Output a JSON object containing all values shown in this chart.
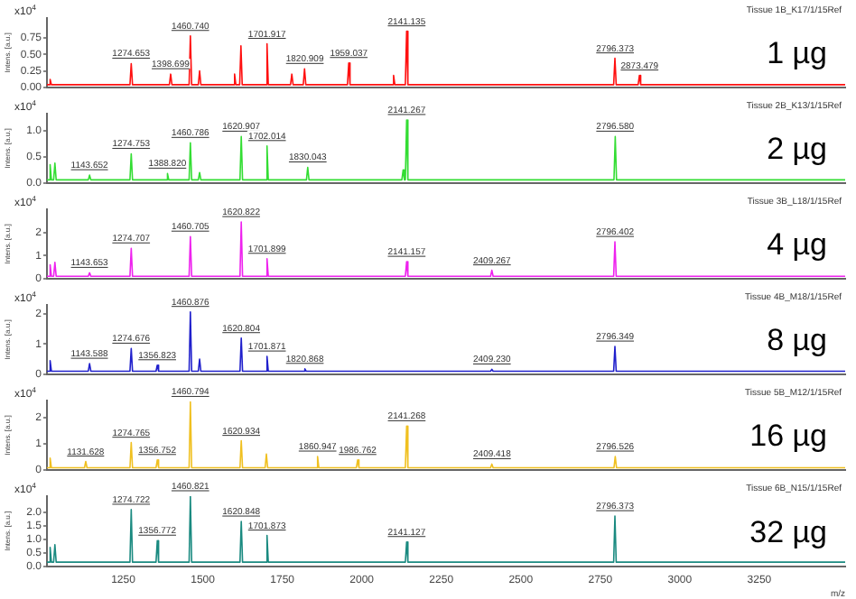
{
  "chart_data": [
    {
      "type": "line",
      "ylabel": "Intens. [a.u.]",
      "color": "#ff1010",
      "xlim": [
        1010,
        3520
      ],
      "xticks": [
        1250,
        1500,
        1750,
        2000,
        2250,
        2500,
        2750,
        3000,
        3250
      ],
      "ylim": [
        0,
        1.05
      ],
      "yticks": [
        {
          "value": 0,
          "label": "0.00"
        },
        0.25,
        {
          "value": 0.5,
          "label": "0.50"
        },
        0.75
      ],
      "tick_labels": "y",
      "grid": false,
      "legend": false,
      "marker": "none",
      "x": [
        1010,
        1016,
        1020,
        1024,
        1271,
        1275,
        1279,
        1395,
        1399,
        1403,
        1457,
        1461,
        1465,
        1486,
        1490,
        1494,
        1596,
        1600,
        1604,
        1616,
        1620,
        1624,
        1698,
        1702,
        1706,
        1776,
        1780,
        1784,
        1816,
        1820,
        1824,
        1955,
        1959,
        1963,
        2096,
        2100,
        2104,
        2137,
        2141,
        2145,
        2792,
        2796,
        2800,
        2869,
        2873,
        2877,
        3520
      ],
      "values": [
        0.04,
        0.04,
        0.12,
        0.04,
        0.04,
        0.36,
        0.04,
        0.04,
        0.2,
        0.04,
        0.04,
        0.78,
        0.04,
        0.04,
        0.25,
        0.04,
        0.04,
        0.2,
        0.04,
        0.04,
        0.63,
        0.04,
        0.04,
        0.66,
        0.04,
        0.04,
        0.2,
        0.04,
        0.04,
        0.28,
        0.04,
        0.04,
        0.37,
        0.04,
        0.04,
        0.18,
        0.04,
        0.04,
        0.85,
        0.04,
        0.04,
        0.44,
        0.04,
        0.04,
        0.18,
        0.04,
        0.04
      ],
      "annotations": [
        "x10$^{4}$",
        "Tissue 1B_K17/1/15Ref",
        "1 µg",
        {
          "text": "1274.653",
          "x": 1274.653,
          "y": 0.36
        },
        {
          "text": "1398.699",
          "x": 1398.699,
          "y": 0.2
        },
        {
          "text": "1460.740",
          "x": 1460.74,
          "y": 0.78
        },
        {
          "text": "1701.917",
          "x": 1701.917,
          "y": 0.66
        },
        {
          "text": "1820.909",
          "x": 1820.909,
          "y": 0.28
        },
        {
          "text": "1959.037",
          "x": 1959.037,
          "y": 0.37
        },
        {
          "text": "2141.135",
          "x": 2141.135,
          "y": 0.85
        },
        {
          "text": "2796.373",
          "x": 2796.373,
          "y": 0.44
        },
        {
          "text": "2873.479",
          "x": 2873.479,
          "y": 0.18
        }
      ]
    },
    {
      "type": "line",
      "ylabel": "Intens. [a.u.]",
      "color": "#33dd33",
      "xlim": [
        1010,
        3520
      ],
      "xticks": [
        1250,
        1500,
        1750,
        2000,
        2250,
        2500,
        2750,
        3000,
        3250
      ],
      "ylim": [
        0,
        1.33
      ],
      "yticks": [
        {
          "value": 0,
          "label": "0.0"
        },
        0.5,
        {
          "value": 1,
          "label": "1.0"
        }
      ],
      "tick_labels": "y",
      "grid": false,
      "legend": false,
      "marker": "none",
      "x": [
        1010,
        1016,
        1020,
        1024,
        1031,
        1035,
        1039,
        1140,
        1144,
        1148,
        1271,
        1275,
        1279,
        1385,
        1389,
        1393,
        1457,
        1461,
        1465,
        1486,
        1490,
        1494,
        1617,
        1621,
        1625,
        1698,
        1702,
        1706,
        1826,
        1830,
        1834,
        2126,
        2130,
        2134,
        2137,
        2141,
        2145,
        2793,
        2797,
        2801,
        3520
      ],
      "values": [
        0.06,
        0.06,
        0.35,
        0.06,
        0.06,
        0.38,
        0.06,
        0.06,
        0.15,
        0.06,
        0.06,
        0.56,
        0.06,
        0.06,
        0.18,
        0.06,
        0.06,
        0.77,
        0.06,
        0.06,
        0.2,
        0.06,
        0.06,
        0.89,
        0.06,
        0.06,
        0.71,
        0.06,
        0.06,
        0.3,
        0.06,
        0.06,
        0.25,
        0.06,
        0.06,
        1.21,
        0.06,
        0.06,
        0.89,
        0.06,
        0.06
      ],
      "annotations": [
        "x10$^{4}$",
        "Tissue 2B_K13/1/15Ref",
        "2 µg",
        {
          "text": "1143.652",
          "x": 1143.652,
          "y": 0.15
        },
        {
          "text": "1274.753",
          "x": 1274.753,
          "y": 0.56
        },
        {
          "text": "1388.820",
          "x": 1388.82,
          "y": 0.18
        },
        {
          "text": "1460.786",
          "x": 1460.786,
          "y": 0.77
        },
        {
          "text": "1620.907",
          "x": 1620.907,
          "y": 0.89
        },
        {
          "text": "1702.014",
          "x": 1702.014,
          "y": 0.71
        },
        {
          "text": "1830.043",
          "x": 1830.043,
          "y": 0.3
        },
        {
          "text": "2141.267",
          "x": 2141.267,
          "y": 1.21
        },
        {
          "text": "2796.580",
          "x": 2796.58,
          "y": 0.89
        }
      ]
    },
    {
      "type": "line",
      "ylabel": "Intens. [a.u.]",
      "color": "#ee22ee",
      "xlim": [
        1010,
        3520
      ],
      "xticks": [
        1250,
        1500,
        1750,
        2000,
        2250,
        2500,
        2750,
        3000,
        3250
      ],
      "ylim": [
        0,
        3
      ],
      "yticks": [
        0,
        1,
        2
      ],
      "tick_labels": "y",
      "grid": false,
      "legend": false,
      "marker": "none",
      "x": [
        1010,
        1016,
        1020,
        1024,
        1031,
        1035,
        1039,
        1140,
        1144,
        1148,
        1271,
        1275,
        1279,
        1457,
        1461,
        1465,
        1617,
        1621,
        1625,
        1698,
        1702,
        1706,
        2137,
        2141,
        2145,
        2405,
        2409,
        2413,
        2792,
        2796,
        2800,
        3520
      ],
      "values": [
        0.1,
        0.1,
        0.6,
        0.1,
        0.1,
        0.7,
        0.1,
        0.1,
        0.25,
        0.1,
        0.1,
        1.31,
        0.1,
        0.1,
        1.82,
        0.1,
        0.1,
        2.45,
        0.1,
        0.1,
        0.86,
        0.1,
        0.1,
        0.73,
        0.1,
        0.1,
        0.36,
        0.1,
        0.1,
        1.59,
        0.1,
        0.1
      ],
      "annotations": [
        "x10$^{4}$",
        "Tissue 3B_L18/1/15Ref",
        "4 µg",
        {
          "text": "1143.653",
          "x": 1143.653,
          "y": 0.25
        },
        {
          "text": "1274.707",
          "x": 1274.707,
          "y": 1.31
        },
        {
          "text": "1460.705",
          "x": 1460.705,
          "y": 1.82
        },
        {
          "text": "1620.822",
          "x": 1620.822,
          "y": 2.45
        },
        {
          "text": "1701.899",
          "x": 1701.899,
          "y": 0.86
        },
        {
          "text": "2141.157",
          "x": 2141.157,
          "y": 0.73
        },
        {
          "text": "2409.267",
          "x": 2409.267,
          "y": 0.36
        },
        {
          "text": "2796.402",
          "x": 2796.402,
          "y": 1.59
        }
      ]
    },
    {
      "type": "line",
      "ylabel": "Intens. [a.u.]",
      "color": "#2020cc",
      "xlim": [
        1010,
        3520
      ],
      "xticks": [
        1250,
        1500,
        1750,
        2000,
        2250,
        2500,
        2750,
        3000,
        3250
      ],
      "ylim": [
        0,
        2.3
      ],
      "yticks": [
        0,
        1,
        2
      ],
      "tick_labels": "y",
      "grid": false,
      "legend": false,
      "marker": "none",
      "x": [
        1010,
        1016,
        1020,
        1024,
        1140,
        1144,
        1148,
        1271,
        1275,
        1279,
        1353,
        1357,
        1361,
        1457,
        1461,
        1465,
        1486,
        1490,
        1494,
        1617,
        1621,
        1625,
        1698,
        1702,
        1706,
        1817,
        1821,
        1825,
        2405,
        2409,
        2413,
        2792,
        2796,
        2800,
        3520
      ],
      "values": [
        0.1,
        0.1,
        0.45,
        0.1,
        0.1,
        0.35,
        0.1,
        0.1,
        0.85,
        0.1,
        0.1,
        0.3,
        0.1,
        0.1,
        2.07,
        0.1,
        0.1,
        0.5,
        0.1,
        0.1,
        1.2,
        0.1,
        0.1,
        0.59,
        0.1,
        0.1,
        0.18,
        0.1,
        0.1,
        0.16,
        0.1,
        0.1,
        0.92,
        0.1,
        0.1
      ],
      "annotations": [
        "x10$^{4}$",
        "Tissue 4B_M18/1/15Ref",
        "8 µg",
        {
          "text": "1143.588",
          "x": 1143.588,
          "y": 0.35
        },
        {
          "text": "1274.676",
          "x": 1274.676,
          "y": 0.85
        },
        {
          "text": "1356.823",
          "x": 1356.823,
          "y": 0.3
        },
        {
          "text": "1460.876",
          "x": 1460.876,
          "y": 2.07
        },
        {
          "text": "1620.804",
          "x": 1620.804,
          "y": 1.2
        },
        {
          "text": "1701.871",
          "x": 1701.871,
          "y": 0.59
        },
        {
          "text": "1820.868",
          "x": 1820.868,
          "y": 0.18
        },
        {
          "text": "2409.230",
          "x": 2409.23,
          "y": 0.16
        },
        {
          "text": "2796.349",
          "x": 2796.349,
          "y": 0.92
        }
      ]
    },
    {
      "type": "line",
      "ylabel": "Intens. [a.u.]",
      "color": "#f0c020",
      "xlim": [
        1010,
        3520
      ],
      "xticks": [
        1250,
        1500,
        1750,
        2000,
        2250,
        2500,
        2750,
        3000,
        3250
      ],
      "ylim": [
        0,
        2.65
      ],
      "yticks": [
        0,
        1,
        2
      ],
      "tick_labels": "y",
      "grid": false,
      "legend": false,
      "marker": "none",
      "x": [
        1010,
        1016,
        1020,
        1024,
        1128,
        1132,
        1136,
        1271,
        1275,
        1279,
        1353,
        1357,
        1361,
        1457,
        1461,
        1465,
        1617,
        1621,
        1625,
        1696,
        1700,
        1704,
        1857,
        1861,
        1865,
        1983,
        1987,
        1991,
        2137,
        2141,
        2145,
        2405,
        2409,
        2413,
        2793,
        2797,
        2801,
        3520
      ],
      "values": [
        0.08,
        0.08,
        0.45,
        0.08,
        0.08,
        0.32,
        0.08,
        0.08,
        1.04,
        0.08,
        0.08,
        0.38,
        0.08,
        0.08,
        2.6,
        0.08,
        0.08,
        1.11,
        0.08,
        0.08,
        0.6,
        0.08,
        0.08,
        0.51,
        0.08,
        0.08,
        0.38,
        0.08,
        0.08,
        1.67,
        0.08,
        0.08,
        0.22,
        0.08,
        0.08,
        0.51,
        0.08,
        0.08
      ],
      "annotations": [
        "x10$^{4}$",
        "Tissue 5B_M12/1/15Ref",
        "16 µg",
        {
          "text": "1131.628",
          "x": 1131.628,
          "y": 0.32
        },
        {
          "text": "1274.765",
          "x": 1274.765,
          "y": 1.04
        },
        {
          "text": "1356.752",
          "x": 1356.752,
          "y": 0.38
        },
        {
          "text": "1460.794",
          "x": 1460.794,
          "y": 2.6
        },
        {
          "text": "1620.934",
          "x": 1620.934,
          "y": 1.11
        },
        {
          "text": "1860.947",
          "x": 1860.947,
          "y": 0.51
        },
        {
          "text": "1986.762",
          "x": 1986.762,
          "y": 0.38
        },
        {
          "text": "2141.268",
          "x": 2141.268,
          "y": 1.67
        },
        {
          "text": "2409.418",
          "x": 2409.418,
          "y": 0.22
        },
        {
          "text": "2796.526",
          "x": 2796.526,
          "y": 0.51
        }
      ]
    },
    {
      "type": "line",
      "ylabel": "Intens. [a.u.]",
      "xlabel": "m/z",
      "color": "#1a8a80",
      "xlim": [
        1010,
        3520
      ],
      "xticks": [
        1250,
        1500,
        1750,
        2000,
        2250,
        2500,
        2750,
        3000,
        3250
      ],
      "ylim": [
        0,
        2.6
      ],
      "yticks": [
        {
          "value": 0,
          "label": "0.0"
        },
        0.5,
        {
          "value": 1,
          "label": "1.0"
        },
        1.5,
        {
          "value": 2,
          "label": "2.0"
        }
      ],
      "grid": false,
      "legend": false,
      "marker": "none",
      "x": [
        1010,
        1016,
        1020,
        1024,
        1031,
        1035,
        1039,
        1271,
        1275,
        1279,
        1353,
        1357,
        1361,
        1457,
        1461,
        1465,
        1617,
        1621,
        1625,
        1698,
        1702,
        1706,
        2137,
        2141,
        2145,
        2792,
        2796,
        2800,
        3520
      ],
      "values": [
        0.15,
        0.15,
        0.7,
        0.15,
        0.15,
        0.8,
        0.15,
        0.15,
        2.1,
        0.15,
        0.15,
        0.95,
        0.15,
        0.15,
        2.6,
        0.15,
        0.15,
        1.66,
        0.15,
        0.15,
        1.14,
        0.15,
        0.15,
        0.9,
        0.15,
        0.15,
        1.86,
        0.15,
        0.15
      ],
      "annotations": [
        "x10$^{4}$",
        "Tissue 6B_N15/1/15Ref",
        "32 µg",
        {
          "text": "1274.722",
          "x": 1274.722,
          "y": 2.1
        },
        {
          "text": "1356.772",
          "x": 1356.772,
          "y": 0.95
        },
        {
          "text": "1460.821",
          "x": 1460.821,
          "y": 2.6
        },
        {
          "text": "1620.848",
          "x": 1620.848,
          "y": 1.66
        },
        {
          "text": "1701.873",
          "x": 1701.873,
          "y": 1.14
        },
        {
          "text": "2141.127",
          "x": 2141.127,
          "y": 0.9
        },
        {
          "text": "2796.373",
          "x": 2796.373,
          "y": 1.86
        }
      ]
    }
  ]
}
